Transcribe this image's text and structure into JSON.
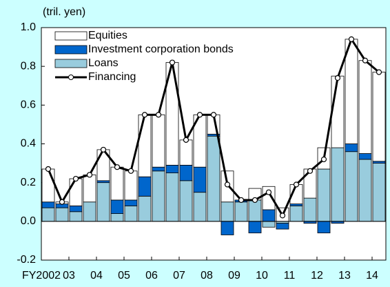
{
  "chart_data": {
    "type": "bar",
    "stacked": true,
    "y_unit_label": "(tril. yen)",
    "categories": [
      "FY2002",
      null,
      "03",
      null,
      "04",
      null,
      "05",
      null,
      "06",
      null,
      "07",
      null,
      "08",
      null,
      "09",
      null,
      "10",
      null,
      "11",
      null,
      "12",
      null,
      "13",
      null,
      "14"
    ],
    "series": [
      {
        "name": "Equities",
        "color": "#ffffff",
        "values": [
          0.17,
          0.01,
          0.14,
          0.14,
          0.16,
          0.17,
          0.15,
          0.32,
          0.27,
          0.53,
          0.13,
          0.27,
          0.1,
          0.16,
          0,
          0.06,
          0.12,
          0.07,
          0.1,
          0.15,
          0.11,
          0.37,
          0.54,
          0.48,
          0.46
        ]
      },
      {
        "name": "Investment corporation bonds",
        "color": "#0066cc",
        "values": [
          0.03,
          0.02,
          0.03,
          0,
          0.01,
          0.07,
          0.03,
          0.1,
          0.02,
          0.04,
          0.08,
          0.13,
          0.01,
          -0.07,
          0.01,
          -0.06,
          0.06,
          -0.03,
          0.01,
          -0.01,
          -0.06,
          -0.01,
          0.04,
          0.03,
          0.01
        ]
      },
      {
        "name": "Loans",
        "color": "#99ccdd",
        "values": [
          0.07,
          0.07,
          0.05,
          0.1,
          0.2,
          0.04,
          0.08,
          0.13,
          0.26,
          0.25,
          0.21,
          0.15,
          0.44,
          0.1,
          0.1,
          0.11,
          -0.03,
          -0.01,
          0.08,
          0.12,
          0.27,
          0.38,
          0.36,
          0.32,
          0.3
        ]
      },
      {
        "name": "Financing",
        "type": "line",
        "color": "#000000",
        "values": [
          0.27,
          0.1,
          0.22,
          0.24,
          0.37,
          0.28,
          0.26,
          0.55,
          0.55,
          0.82,
          0.42,
          0.55,
          0.55,
          0.19,
          0.11,
          0.11,
          0.15,
          0.03,
          0.19,
          0.26,
          0.32,
          0.74,
          0.94,
          0.83,
          0.77
        ]
      }
    ],
    "ylim": [
      -0.2,
      1.0
    ],
    "yticks": [
      {
        "value": -0.2,
        "label": "-0.2"
      },
      {
        "value": 0,
        "label": "0.0"
      },
      {
        "value": 0.2,
        "label": "0.2"
      },
      {
        "value": 0.4,
        "label": "0.4"
      },
      {
        "value": 0.6,
        "label": "0.6"
      },
      {
        "value": 0.8,
        "label": "0.8"
      },
      {
        "value": 1.0,
        "label": "1.0"
      }
    ]
  }
}
